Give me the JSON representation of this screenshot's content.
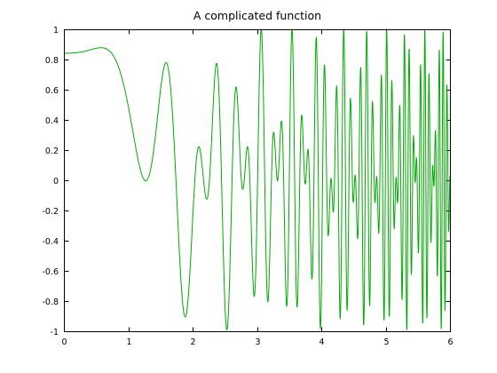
{
  "chart_data": {
    "type": "line",
    "title": "A complicated function",
    "xlabel": "",
    "ylabel": "",
    "xlim": [
      0,
      6
    ],
    "ylim": [
      -1,
      1
    ],
    "xticks": [
      0,
      1,
      2,
      3,
      4,
      5,
      6
    ],
    "xtick_labels": [
      "0",
      "1",
      "2",
      "3",
      "4",
      "5",
      "6"
    ],
    "yticks": [
      -1,
      -0.8,
      -0.6,
      -0.4,
      -0.2,
      0,
      0.2,
      0.4,
      0.6,
      0.8,
      1
    ],
    "ytick_labels": [
      "-1",
      "-0.8",
      "-0.6",
      "-0.4",
      "-0.2",
      "0",
      "0.2",
      "0.4",
      "0.6",
      "0.8",
      "1"
    ],
    "grid": false,
    "legend": "none",
    "series": [
      {
        "color": "#00aa00",
        "function": "sin(x^3 + 1) * cos(x^2)",
        "x_range": [
          0,
          6
        ],
        "samples": 6000
      }
    ]
  }
}
